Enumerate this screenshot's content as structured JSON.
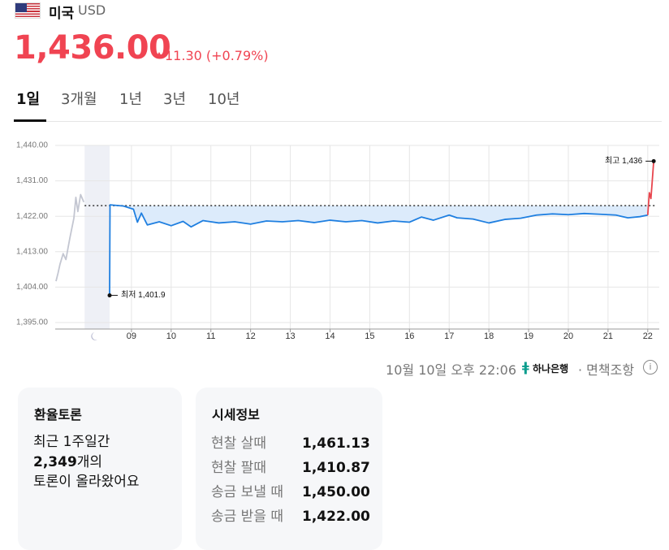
{
  "header": {
    "country": "미국",
    "currency": "USD"
  },
  "quote": {
    "price": "1,436.00",
    "change": "11.30 (+0.79%)"
  },
  "tabs": [
    "1일",
    "3개월",
    "1년",
    "3년",
    "10년"
  ],
  "chart_data": {
    "type": "line",
    "xlim": [
      7.08,
      22.29
    ],
    "ylim": [
      1393.35,
      1440
    ],
    "yticks": [
      {
        "value": 1395,
        "label": "1,395.00"
      },
      {
        "value": 1404,
        "label": "1,404.00"
      },
      {
        "value": 1413,
        "label": "1,413.00"
      },
      {
        "value": 1422,
        "label": "1,422.00"
      },
      {
        "value": 1431,
        "label": "1,431.00"
      },
      {
        "value": 1440,
        "label": "1,440.00"
      }
    ],
    "xticks": [
      {
        "value": 9,
        "label": "09"
      },
      10,
      11,
      12,
      13,
      14,
      15,
      16,
      17,
      18,
      19,
      20,
      21,
      22
    ],
    "grid": true,
    "closed_hours": [
      7.82,
      8.45
    ],
    "reference_line": 1424.7,
    "fill_color": "#dcebfb",
    "series": [
      {
        "color": "#c3c6d1",
        "x": [
          7.1,
          7.15,
          7.2,
          7.28,
          7.35,
          7.4,
          7.45,
          7.5,
          7.55,
          7.6,
          7.65,
          7.72,
          7.8
        ],
        "values": [
          1405.5,
          1407.5,
          1409.8,
          1412.5,
          1411.0,
          1413.8,
          1416.5,
          1419.0,
          1421.5,
          1426.8,
          1423.2,
          1427.5,
          1425.6
        ]
      },
      {
        "color": "#1f7fe0",
        "x": [
          8.45,
          8.46,
          8.8,
          9.05,
          9.15,
          9.25,
          9.4,
          9.7,
          10.0,
          10.3,
          10.5,
          10.8,
          11.2,
          11.6,
          12.0,
          12.4,
          12.8,
          13.2,
          13.6,
          14.0,
          14.4,
          14.8,
          15.2,
          15.6,
          16.0,
          16.3,
          16.6,
          17.0,
          17.2,
          17.6,
          18.0,
          18.4,
          18.8,
          19.2,
          19.6,
          20.0,
          20.4,
          20.8,
          21.2,
          21.5,
          21.8,
          22.0
        ],
        "values": [
          1401.9,
          1424.9,
          1424.6,
          1423.8,
          1420.5,
          1422.8,
          1419.8,
          1420.6,
          1419.6,
          1420.7,
          1419.3,
          1420.9,
          1420.3,
          1420.6,
          1420.0,
          1420.8,
          1420.6,
          1420.9,
          1420.4,
          1421.0,
          1420.6,
          1420.9,
          1420.3,
          1420.8,
          1420.5,
          1421.8,
          1421.0,
          1422.3,
          1421.6,
          1421.3,
          1420.3,
          1421.2,
          1421.5,
          1422.3,
          1422.6,
          1422.4,
          1422.7,
          1422.5,
          1422.3,
          1421.6,
          1421.9,
          1422.3
        ]
      },
      {
        "color": "#e8454d",
        "x": [
          22.0,
          22.04,
          22.08,
          22.11,
          22.15
        ],
        "values": [
          1422.3,
          1428.0,
          1426.5,
          1430.5,
          1436.0
        ]
      }
    ],
    "annotations": [
      {
        "label": "최저 1,401.9",
        "x": 8.45,
        "y": 1401.9,
        "side": "right"
      },
      {
        "label": "최고 1,436",
        "x": 22.15,
        "y": 1436.0,
        "side": "left"
      }
    ]
  },
  "footer": {
    "timestamp": "10월 10일 오후 22:06",
    "bank": "하나은행",
    "disclaimer": "· 면책조항"
  },
  "discussion": {
    "title": "환율토론",
    "line1": "최근 1주일간",
    "count": "2,349",
    "count_suffix": "개의",
    "line3": "토론이 올라왔어요"
  },
  "market_info": {
    "title": "시세정보",
    "rows": [
      [
        "현찰 살때",
        "1,461.13"
      ],
      [
        "현찰 팔때",
        "1,410.87"
      ],
      [
        "송금 보낼 때",
        "1,450.00"
      ],
      [
        "송금 받을 때",
        "1,422.00"
      ]
    ]
  }
}
